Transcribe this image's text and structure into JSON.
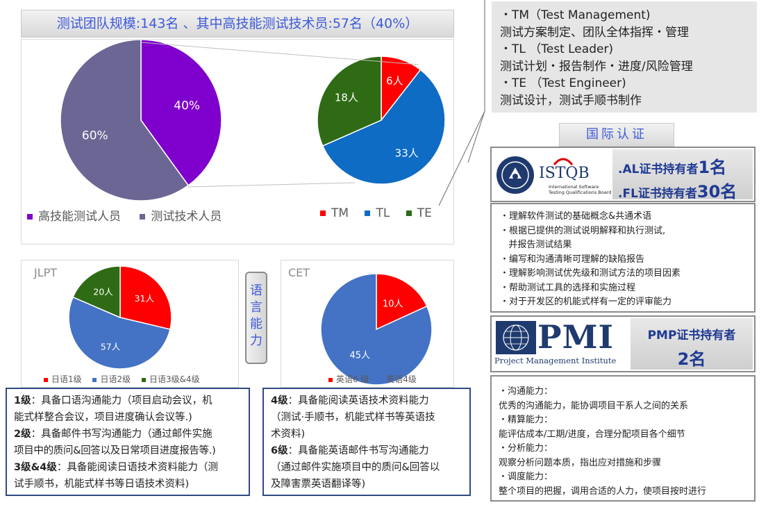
{
  "header": {
    "title": "测试团队规模:143名 、其中高技能测试技术员:57名（40%）"
  },
  "chart_data": [
    {
      "type": "pie",
      "categories": [
        "高技能测试人员",
        "测试技术人员"
      ],
      "values": [
        40,
        60
      ],
      "labels": [
        "40%",
        "60%"
      ],
      "colors": [
        "#7f00cc",
        "#6b6694"
      ]
    },
    {
      "type": "pie",
      "categories": [
        "TM",
        "TL",
        "TE"
      ],
      "values": [
        6,
        33,
        18
      ],
      "labels": [
        "6人",
        "33人",
        "18人"
      ],
      "colors": [
        "#ff0000",
        "#0f6cc4",
        "#2e6b14"
      ]
    },
    {
      "type": "pie",
      "title": "JLPT",
      "categories": [
        "日语1级",
        "日语2级",
        "日语3级&4级"
      ],
      "values": [
        31,
        57,
        20
      ],
      "labels": [
        "31人",
        "57人",
        "20人"
      ],
      "colors": [
        "#ff0000",
        "#4472c4",
        "#2e6b14"
      ]
    },
    {
      "type": "pie",
      "title": "CET",
      "categories": [
        "英语6 级",
        "英语4级"
      ],
      "values": [
        10,
        45
      ],
      "labels": [
        "10人",
        "45人"
      ],
      "colors": [
        "#ff0000",
        "#4472c4"
      ]
    }
  ],
  "roles": [
    "・TM（Test Management)",
    "测试方案制定、团队全体指挥・管理",
    "・TL （Test Leader)",
    "测试计划・报告制作・进度/风险管理",
    "・TE （Test Engineer)",
    "测试设计，测试手顺书制作"
  ],
  "intl_cert": {
    "label": "国际认证"
  },
  "istqb": {
    "logo_text": "ISTQB",
    "logo_sub1": "International Software",
    "logo_sub2": "Testing Qualifications Board",
    "al_prefix": ".AL证书持有者",
    "al_count": "1名",
    "fl_prefix": ".FL证书持有者",
    "fl_count": "30名",
    "bullets": [
      "・理解软件测试的基础概念&共通术语",
      "・根据已提供的测试说明解释和执行测试,",
      "   并报告测试结果",
      "・编写和沟通清晰可理解的缺陷报告",
      "・理解影响测试优先级和测试方法的项目因素",
      "・帮助测试工具的选择和实施过程",
      "・对于开发区的机能式样有一定的评审能力"
    ]
  },
  "pmi": {
    "logo_text": "PMI",
    "logo_sub": "Project Management Institute",
    "cert_line1": "PMP证书持有者",
    "cert_line2": "2名",
    "bullets": [
      "・沟通能力：",
      "优秀的沟通能力，能协调项目干系人之间的关系",
      "・精算能力：",
      "能评估成本/工期/进度，合理分配项目各个细节",
      "・分析能力：",
      "观察分析问题本质，指出应对措施和步骤",
      "・调度能力：",
      "整个项目的把握，调用合适的人力，使项目按时进行"
    ]
  },
  "language": {
    "side_label": [
      "语",
      "言",
      "能",
      "力"
    ],
    "jlpt_lines": [
      {
        "bold": "1级",
        "text": "：具备口语沟通能力（项目启动会议，机"
      },
      {
        "bold": "",
        "text": "能式样整合会议，项目进度确认会议等.)"
      },
      {
        "bold": "2级",
        "text": "：具备邮件书写沟通能力（通过邮件实施"
      },
      {
        "bold": "",
        "text": "项目中的质问&回答以及日常项目进度报告等.)"
      },
      {
        "bold": "3级&4级",
        "text": "：具备能阅读日语技术资料能力（测"
      },
      {
        "bold": "",
        "text": "试手顺书，机能式样书等日语技术资料)"
      }
    ],
    "cet_lines": [
      {
        "bold": "4级",
        "text": "：具备能阅读英语技术资料能力"
      },
      {
        "bold": "",
        "text": "（测试·手顺书，机能式样书等英语技"
      },
      {
        "bold": "",
        "text": "术资料)"
      },
      {
        "bold": "6级",
        "text": "：具备能英语邮件书写沟通能力"
      },
      {
        "bold": "",
        "text": "（通过邮件实施项目中的质问&回答以"
      },
      {
        "bold": "",
        "text": "及障害票英语翻译等)"
      }
    ]
  }
}
